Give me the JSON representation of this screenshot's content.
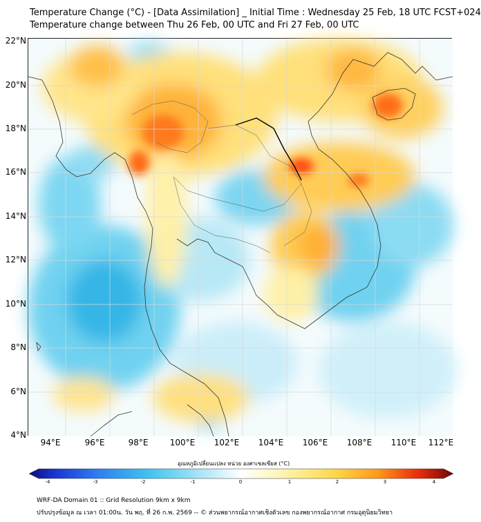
{
  "title": {
    "line1": "Temperature Change (°C) - [Data Assimilation] _ Initial Time : Wednesday 25 Feb, 18 UTC FCST+024",
    "line2": "Temperature change between Thu 26 Feb, 00 UTC and Fri 27 Feb, 00 UTC"
  },
  "axes": {
    "lat_labels": [
      "22°N",
      "20°N",
      "18°N",
      "16°N",
      "14°N",
      "12°N",
      "10°N",
      "8°N",
      "6°N",
      "4°N"
    ],
    "lon_labels": [
      "94°E",
      "96°E",
      "98°E",
      "100°E",
      "102°E",
      "104°E",
      "106°E",
      "108°E",
      "110°E",
      "112°E"
    ]
  },
  "colorbar": {
    "title": "อุณหภูมิเปลี่ยนแปลง หน่วย องศาเซลเซียส (°C)",
    "ticks": [
      "-4",
      "-3",
      "-2",
      "-1",
      "0",
      "1",
      "2",
      "3",
      "4"
    ],
    "range": [
      -4,
      4
    ]
  },
  "footer": {
    "line1": "WRF-DA Domain 01 :: Grid Resolution 9km x 9km",
    "line2": "ปรับปรุงข้อมูล ณ เวลา 01:00น. วัน พฤ. ที่ 26 ก.พ. 2569 -- © ส่วนพยากรณ์อากาศเชิงตัวเลข กองพยากรณ์อากาศ กรมอุตุนิยมวิทยา"
  },
  "colors": {
    "cold": "#52c9ee",
    "neutral": "#ffffff",
    "warm": "#ffe070",
    "hot": "#ffa020",
    "very_hot": "#ff5a12"
  }
}
